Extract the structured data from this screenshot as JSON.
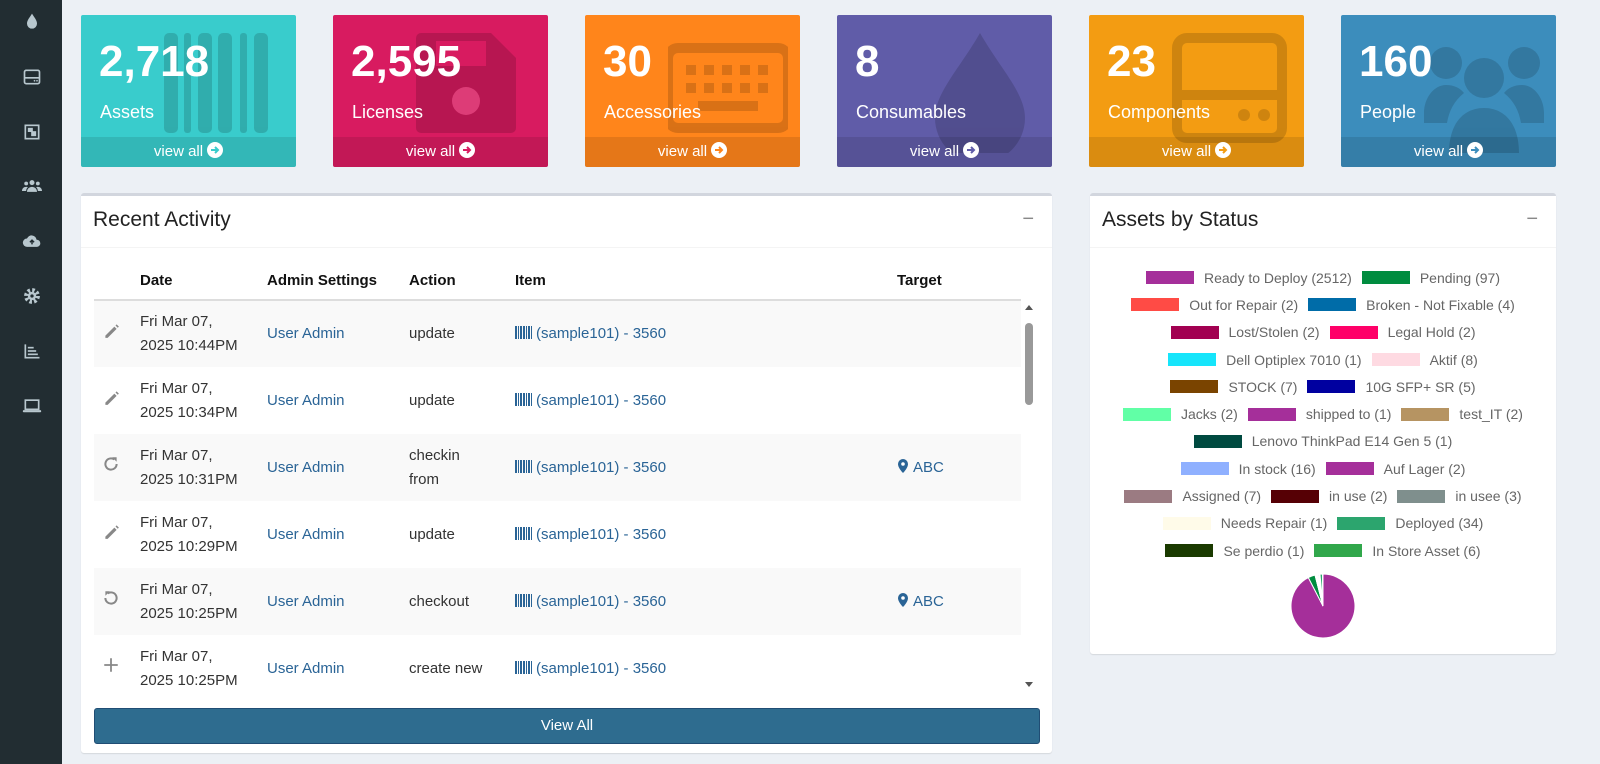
{
  "sidebar": {
    "icons": [
      "tint-icon",
      "hdd-icon",
      "object-group-icon",
      "users-icon",
      "cloud-upload-icon",
      "gear-icon",
      "chart-bar-icon",
      "laptop-icon"
    ]
  },
  "tiles": [
    {
      "count": "2,718",
      "label": "Assets",
      "link": "view all",
      "color": "#39cccc",
      "icon": "barcode-icon"
    },
    {
      "count": "2,595",
      "label": "Licenses",
      "link": "view all",
      "color": "#d81b60",
      "icon": "floppy-disk-icon"
    },
    {
      "count": "30",
      "label": "Accessories",
      "link": "view all",
      "color": "#ff851b",
      "icon": "keyboard-icon"
    },
    {
      "count": "8",
      "label": "Consumables",
      "link": "view all",
      "color": "#605ca8",
      "icon": "tint-icon"
    },
    {
      "count": "23",
      "label": "Components",
      "link": "view all",
      "color": "#f39c12",
      "icon": "hdd-icon"
    },
    {
      "count": "160",
      "label": "People",
      "link": "view all",
      "color": "#3c8dbc",
      "icon": "users-icon"
    }
  ],
  "activity": {
    "title": "Recent Activity",
    "collapse": "−",
    "columns": [
      "",
      "Date",
      "Admin Settings",
      "Action",
      "Item",
      "Target"
    ],
    "rows": [
      {
        "icon": "pencil-icon",
        "date1": "Fri Mar 07,",
        "date2": "2025 10:44PM",
        "admin": "User Admin",
        "action": "update",
        "item": "(sample101) - 3560",
        "target": ""
      },
      {
        "icon": "pencil-icon",
        "date1": "Fri Mar 07,",
        "date2": "2025 10:34PM",
        "admin": "User Admin",
        "action": "update",
        "item": "(sample101) - 3560",
        "target": ""
      },
      {
        "icon": "rotate-right-icon",
        "date1": "Fri Mar 07,",
        "date2": "2025 10:31PM",
        "admin": "User Admin",
        "action": "checkin from",
        "item": "(sample101) - 3560",
        "target": "ABC"
      },
      {
        "icon": "pencil-icon",
        "date1": "Fri Mar 07,",
        "date2": "2025 10:29PM",
        "admin": "User Admin",
        "action": "update",
        "item": "(sample101) - 3560",
        "target": ""
      },
      {
        "icon": "rotate-left-icon",
        "date1": "Fri Mar 07,",
        "date2": "2025 10:25PM",
        "admin": "User Admin",
        "action": "checkout",
        "item": "(sample101) - 3560",
        "target": "ABC"
      },
      {
        "icon": "plus-icon",
        "date1": "Fri Mar 07,",
        "date2": "2025 10:25PM",
        "admin": "User Admin",
        "action": "create new",
        "item": "(sample101) - 3560",
        "target": ""
      }
    ],
    "view_all": "View All"
  },
  "status": {
    "title": "Assets by Status",
    "collapse": "−"
  },
  "chart_data": {
    "type": "pie",
    "title": "Assets by Status",
    "legend_placement": "top",
    "slices": [
      {
        "name": "Ready to Deploy (2512)",
        "value": 2512,
        "color": "#a52f9a"
      },
      {
        "name": "Pending (97)",
        "value": 97,
        "color": "#008c3f"
      },
      {
        "name": "Out for Repair (2)",
        "value": 2,
        "color": "#ff4b45"
      },
      {
        "name": "Broken - Not Fixable (4)",
        "value": 4,
        "color": "#006ca8"
      },
      {
        "name": "Lost/Stolen (2)",
        "value": 2,
        "color": "#a20051"
      },
      {
        "name": "Legal Hold (2)",
        "value": 2,
        "color": "#ff0068"
      },
      {
        "name": "Dell Optiplex 7010 (1)",
        "value": 1,
        "color": "#16e5fb"
      },
      {
        "name": "Aktif (8)",
        "value": 8,
        "color": "#fedae2"
      },
      {
        "name": "STOCK (7)",
        "value": 7,
        "color": "#7a4400"
      },
      {
        "name": "10G SFP+ SR (5)",
        "value": 5,
        "color": "#0000a0"
      },
      {
        "name": "Jacks (2)",
        "value": 2,
        "color": "#61ffa6"
      },
      {
        "name": "shipped to (1)",
        "value": 1,
        "color": "#a52f9a"
      },
      {
        "name": "test_IT (2)",
        "value": 2,
        "color": "#b69462"
      },
      {
        "name": "Lenovo ThinkPad E14 Gen 5 (1)",
        "value": 1,
        "color": "#004a40"
      },
      {
        "name": "In stock (16)",
        "value": 16,
        "color": "#8fb0ff"
      },
      {
        "name": "Auf Lager (2)",
        "value": 2,
        "color": "#a52f9a"
      },
      {
        "name": "Assigned (7)",
        "value": 7,
        "color": "#9b7b82"
      },
      {
        "name": "in use (2)",
        "value": 2,
        "color": "#560005"
      },
      {
        "name": "in usee (3)",
        "value": 3,
        "color": "#7f8f8d"
      },
      {
        "name": "Needs Repair (1)",
        "value": 1,
        "color": "#fffbe9"
      },
      {
        "name": "Deployed (34)",
        "value": 34,
        "color": "#2ca56e"
      },
      {
        "name": "Se perdio (1)",
        "value": 1,
        "color": "#1a3a00"
      },
      {
        "name": "In Store Asset (6)",
        "value": 6,
        "color": "#31a74b"
      }
    ]
  }
}
